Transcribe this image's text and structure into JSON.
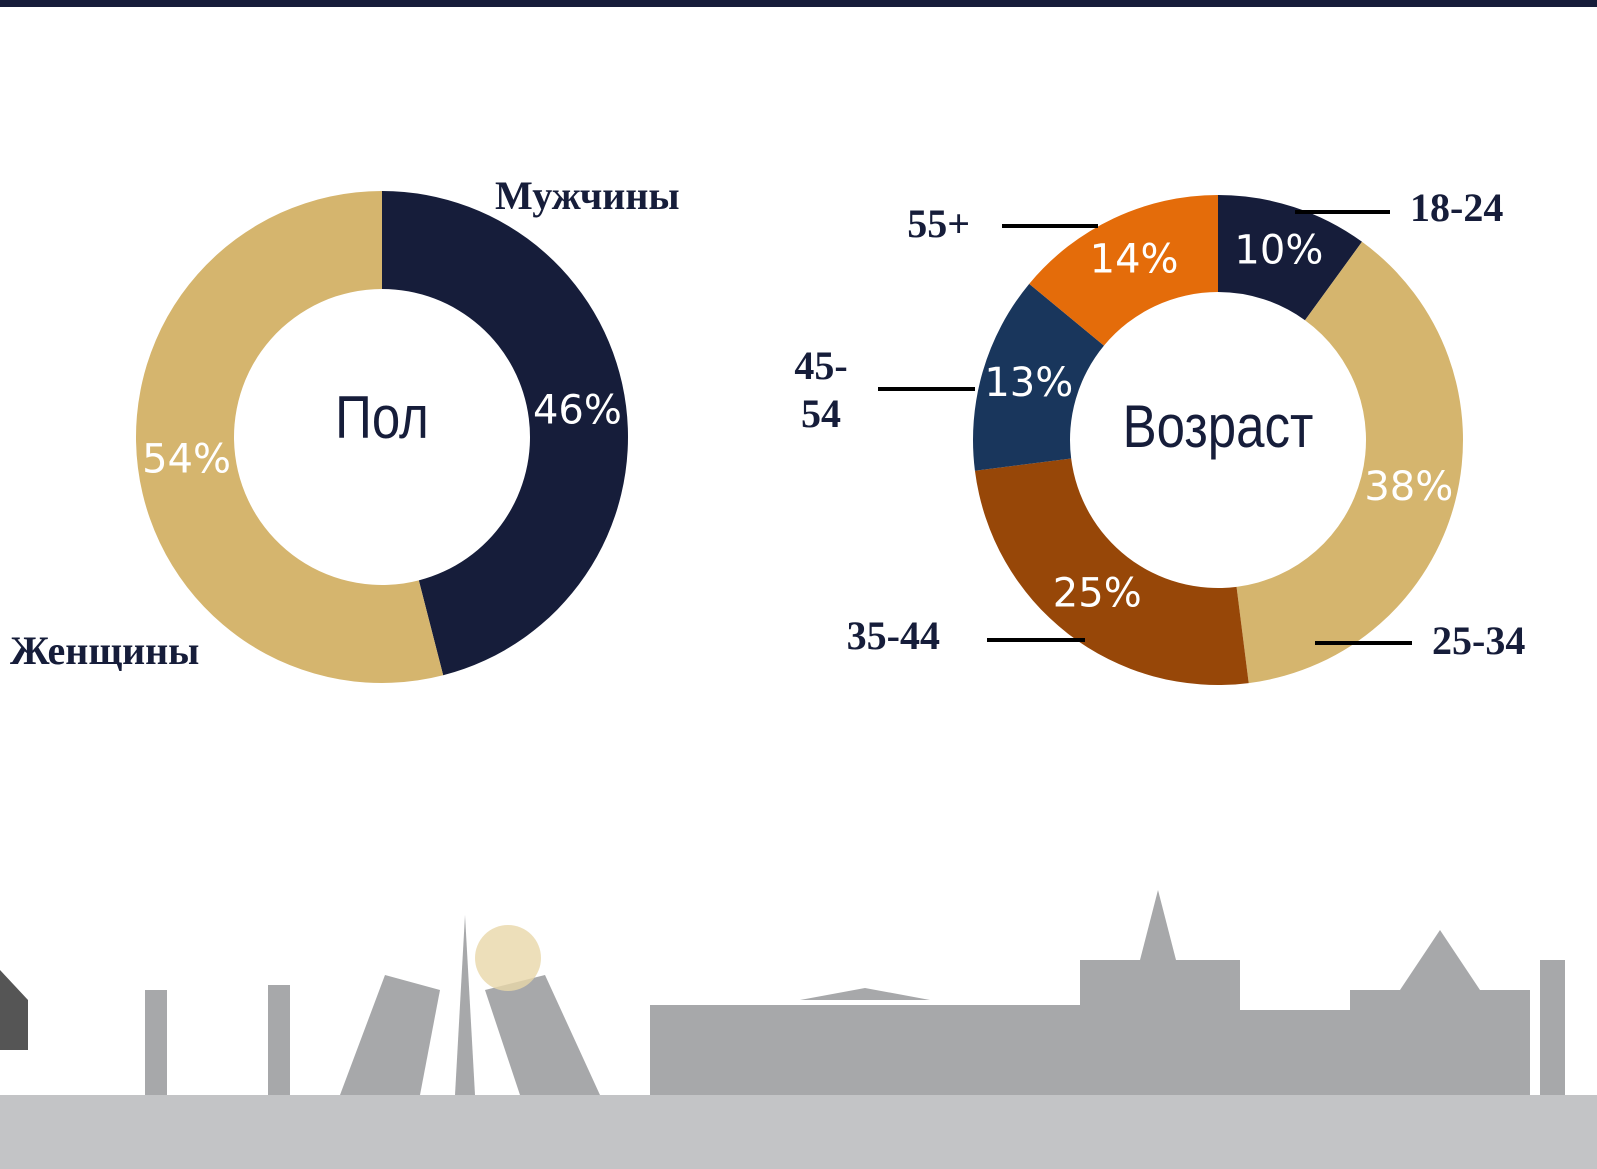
{
  "chart_data": [
    {
      "type": "donut",
      "title": "Пол",
      "categories": [
        "Мужчины",
        "Женщины"
      ],
      "values": [
        46,
        54
      ],
      "value_labels": [
        "46%",
        "54%"
      ],
      "colors": [
        "#161d3a",
        "#d5b56e"
      ]
    },
    {
      "type": "donut",
      "title": "Возраст",
      "categories": [
        "18-24",
        "25-34",
        "35-44",
        "45-54",
        "55+"
      ],
      "values": [
        10,
        38,
        25,
        13,
        14
      ],
      "value_labels": [
        "10%",
        "38%",
        "25%",
        "13%",
        "14%"
      ],
      "colors": [
        "#161d3a",
        "#d5b56e",
        "#974708",
        "#19365c",
        "#e46c0a"
      ]
    }
  ]
}
